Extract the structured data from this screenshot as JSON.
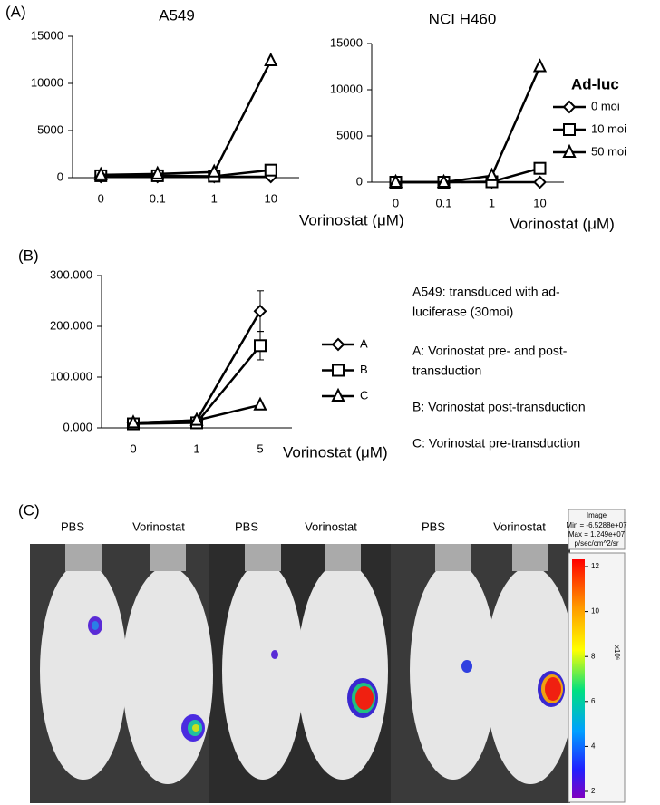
{
  "panel_labels": [
    "(A)",
    "(B)",
    "(C)"
  ],
  "chart_data": [
    {
      "type": "line",
      "title": "A549",
      "x_label": "Vorinostat (μM)",
      "categories": [
        "0",
        "0.1",
        "1",
        "10"
      ],
      "ylim": [
        0,
        15000
      ],
      "yticks": [
        0,
        5000,
        10000,
        15000
      ],
      "series": [
        {
          "marker": "diamond",
          "color": "#000000",
          "values": [
            100,
            100,
            100,
            100
          ]
        },
        {
          "marker": "square",
          "color": "#000000",
          "values": [
            200,
            200,
            150,
            800
          ]
        },
        {
          "marker": "triangle",
          "color": "#000000",
          "values": [
            300,
            400,
            600,
            12400
          ]
        }
      ]
    },
    {
      "type": "line",
      "title": "NCI H460",
      "x_label": "Vorinostat (μM)",
      "categories": [
        "0",
        "0.1",
        "1",
        "10"
      ],
      "ylim": [
        0,
        15000
      ],
      "yticks": [
        0,
        5000,
        10000,
        15000
      ],
      "legend_title": "Ad-luc",
      "series": [
        {
          "name": "0 moi",
          "marker": "diamond",
          "color": "#000000",
          "values": [
            0,
            0,
            0,
            0
          ]
        },
        {
          "name": "10 moi",
          "marker": "square",
          "color": "#000000",
          "values": [
            0,
            0,
            50,
            1500
          ]
        },
        {
          "name": "50 moi",
          "marker": "triangle",
          "color": "#000000",
          "values": [
            0,
            0,
            700,
            12500
          ]
        }
      ]
    },
    {
      "type": "line",
      "x_label": "Vorinostat (μM)",
      "categories": [
        "0",
        "1",
        "5"
      ],
      "ylim": [
        0,
        300
      ],
      "yticks": [
        {
          "value": 0,
          "label": "0.000"
        },
        {
          "value": 100,
          "label": "100.000"
        },
        {
          "value": 200,
          "label": "200.000"
        },
        {
          "value": 300,
          "label": "300.000"
        }
      ],
      "series": [
        {
          "name": "A",
          "marker": "diamond",
          "color": "#000000",
          "values": [
            10,
            15,
            230
          ],
          "errors": [
            0,
            0,
            40
          ]
        },
        {
          "name": "B",
          "marker": "square",
          "color": "#000000",
          "values": [
            8,
            10,
            162
          ],
          "errors": [
            0,
            0,
            28
          ]
        },
        {
          "name": "C",
          "marker": "triangle",
          "color": "#000000",
          "values": [
            10,
            15,
            45
          ]
        }
      ],
      "annotations": [
        "A549: transduced with ad-",
        "luciferase (30moi)",
        "A: Vorinostat pre- and post-",
        "transduction",
        "B: Vorinostat post-transduction",
        "C: Vorinostat pre-transduction"
      ]
    }
  ],
  "imaging": {
    "labels": [
      "PBS",
      "Vorinostat",
      "PBS",
      "Vorinostat",
      "PBS",
      "Vorinostat"
    ],
    "colorbar": {
      "title": "Image",
      "min_text": "Min = -6.5288e+07",
      "max_text": "Max = 1.249e+07",
      "unit_text": "p/sec/cm^2/sr",
      "ticks": [
        12,
        10,
        8,
        6,
        4,
        2
      ],
      "scale_label": "x10⁶"
    }
  }
}
